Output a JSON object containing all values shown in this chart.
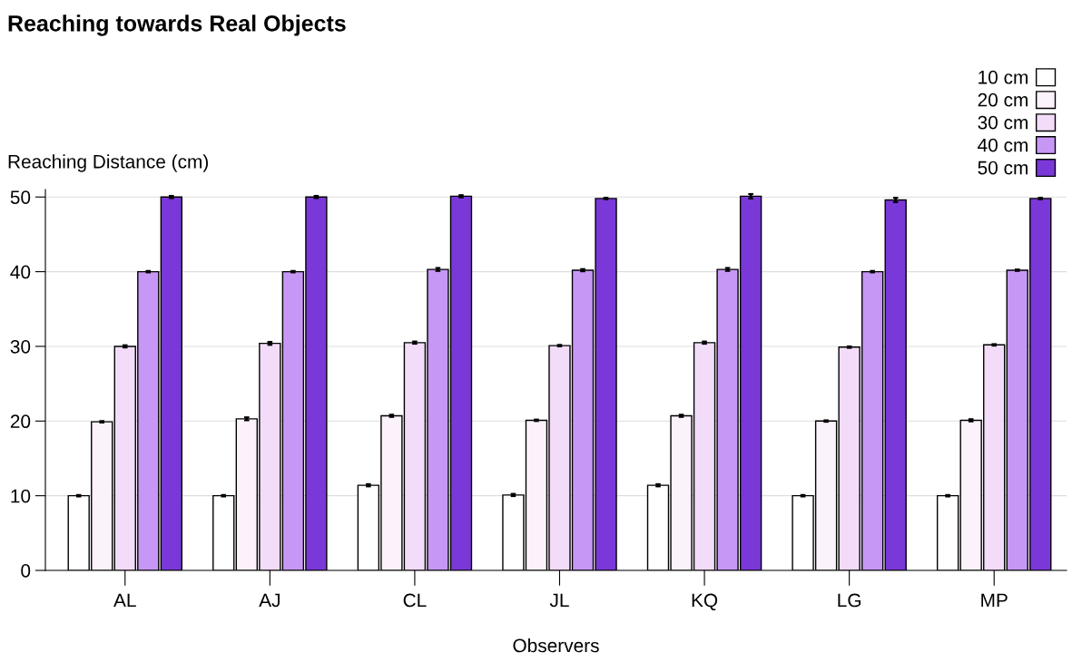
{
  "chart_data": {
    "type": "bar",
    "title": "Reaching towards Real Objects",
    "xlabel": "Observers",
    "ylabel": "Reaching Distance (cm)",
    "categories": [
      "AL",
      "AJ",
      "CL",
      "JL",
      "KQ",
      "LG",
      "MP"
    ],
    "series": [
      {
        "name": "10 cm",
        "color": "#ffffff",
        "values": [
          10,
          10,
          11.4,
          10.1,
          11.4,
          10,
          10
        ],
        "errors": [
          0.1,
          0.1,
          0.15,
          0.15,
          0.15,
          0.1,
          0.1
        ]
      },
      {
        "name": "20 cm",
        "color": "#fcf2fc",
        "values": [
          19.9,
          20.3,
          20.7,
          20.1,
          20.7,
          20,
          20.1
        ],
        "errors": [
          0.1,
          0.2,
          0.15,
          0.1,
          0.15,
          0.1,
          0.15
        ]
      },
      {
        "name": "30 cm",
        "color": "#f3dcf9",
        "values": [
          30,
          30.4,
          30.5,
          30.1,
          30.5,
          29.9,
          30.2
        ],
        "errors": [
          0.15,
          0.2,
          0.15,
          0.1,
          0.15,
          0.1,
          0.1
        ]
      },
      {
        "name": "40 cm",
        "color": "#c797f5",
        "values": [
          40,
          40,
          40.3,
          40.2,
          40.3,
          40,
          40.2
        ],
        "errors": [
          0.1,
          0.1,
          0.2,
          0.15,
          0.2,
          0.1,
          0.1
        ]
      },
      {
        "name": "50 cm",
        "color": "#7b38d8",
        "values": [
          50,
          50,
          50.1,
          49.8,
          50.1,
          49.6,
          49.8
        ],
        "errors": [
          0.15,
          0.15,
          0.15,
          0.1,
          0.3,
          0.3,
          0.1
        ]
      }
    ],
    "ylim": [
      0,
      51
    ],
    "yticks": [
      0,
      10,
      20,
      30,
      40,
      50
    ],
    "grid": "y",
    "legend": "top right"
  }
}
